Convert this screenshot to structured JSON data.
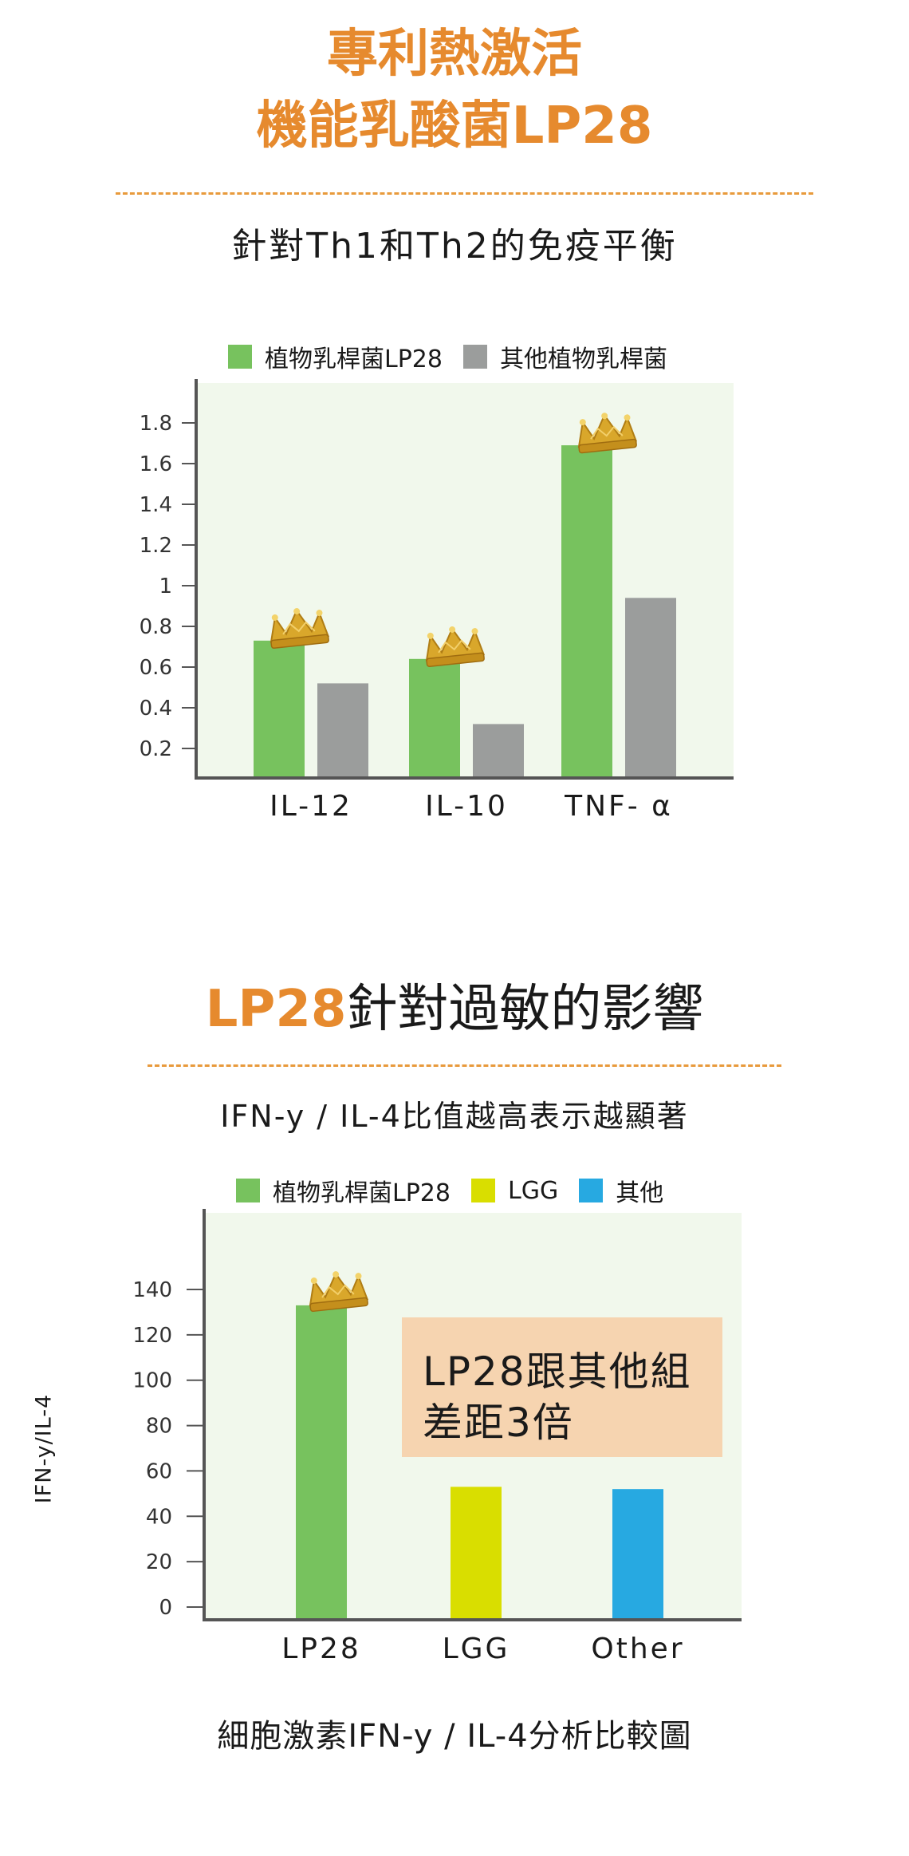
{
  "header": {
    "title_line1": "專利熱激活",
    "title_line2": "機能乳酸菌LP28",
    "subtitle": "針對Th1和Th2的免疫平衡"
  },
  "section2": {
    "title_highlight": "LP28",
    "title_rest": "針對過敏的影響",
    "subtitle": "IFN-y / IL-4比值越高表示越顯著",
    "callout_line1": "LP28跟其他組",
    "callout_line2": "差距3倍",
    "footnote": "細胞激素IFN-y / IL-4分析比較圖"
  },
  "colors": {
    "accent": "#e68a2e",
    "green": "#77c25e",
    "gray": "#9b9d9c",
    "yellow": "#d9de00",
    "blue": "#27a9e1",
    "plot_bg": "#f1f8ec",
    "callout_bg": "#f6d4b0",
    "crown": "crown-icon"
  },
  "chart_data": [
    {
      "type": "bar",
      "categories": [
        "IL-12",
        "IL-10",
        "TNF- α"
      ],
      "series": [
        {
          "name": "植物乳桿菌LP28",
          "values": [
            0.73,
            0.64,
            1.69
          ]
        },
        {
          "name": "其他植物乳桿菌",
          "values": [
            0.52,
            0.32,
            0.94
          ]
        }
      ],
      "yticks": [
        "0.2",
        "0.4",
        "0.6",
        "0.8",
        "1",
        "1.2",
        "1.4",
        "1.6",
        "1.8"
      ],
      "ylim": [
        0,
        1.9
      ],
      "grid": false,
      "legend": "top",
      "annotations": [
        "crown-icon on IL-12",
        "crown-icon on IL-10",
        "crown-icon on TNF- α"
      ]
    },
    {
      "type": "bar",
      "categories": [
        "LP28",
        "LGG",
        "Other"
      ],
      "series": [
        {
          "name": "植物乳桿菌LP28",
          "values": [
            133,
            null,
            null
          ]
        },
        {
          "name": "LGG",
          "values": [
            null,
            53,
            null
          ]
        },
        {
          "name": "其他",
          "values": [
            null,
            null,
            52
          ]
        }
      ],
      "yticks": [
        "0",
        "20",
        "40",
        "60",
        "80",
        "100",
        "120",
        "140"
      ],
      "ylabel": "IFN-y/IL-4",
      "ylim": [
        0,
        165
      ],
      "grid": false,
      "legend": "top",
      "annotations": [
        "crown-icon on LP28"
      ]
    }
  ]
}
